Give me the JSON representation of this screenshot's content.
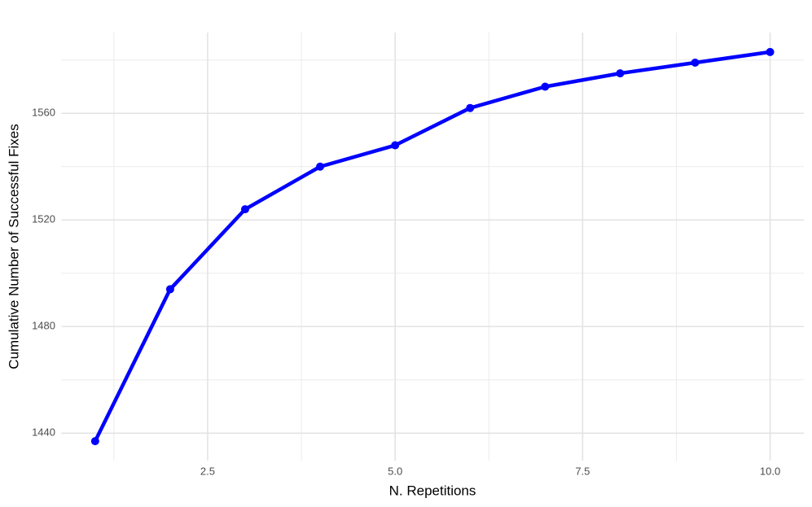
{
  "chart_data": {
    "type": "line",
    "x_label": "N. Repetitions",
    "y_label": "Cumulative Number of Successful Fixes",
    "x": [
      1,
      2,
      3,
      4,
      5,
      6,
      7,
      8,
      9,
      10
    ],
    "series": [
      {
        "color": "#0000ff",
        "values": [
          1437,
          1494,
          1524,
          1540,
          1548,
          1562,
          1570,
          1575,
          1579,
          1583
        ]
      }
    ],
    "xlim": [
      0.55,
      10.45
    ],
    "ylim": [
      1429.7,
      1590.3
    ],
    "xticks": [
      2.5,
      {
        "value": 5,
        "label": "5.0"
      },
      7.5,
      {
        "value": 10,
        "label": "10.0"
      }
    ],
    "yticks": [
      1440,
      1480,
      1520,
      1560
    ],
    "x_minor_ticks": [
      1.25,
      3.75,
      6.25,
      8.75
    ],
    "y_minor_ticks": [
      1460,
      1500,
      1540,
      1580
    ],
    "grid": true
  }
}
